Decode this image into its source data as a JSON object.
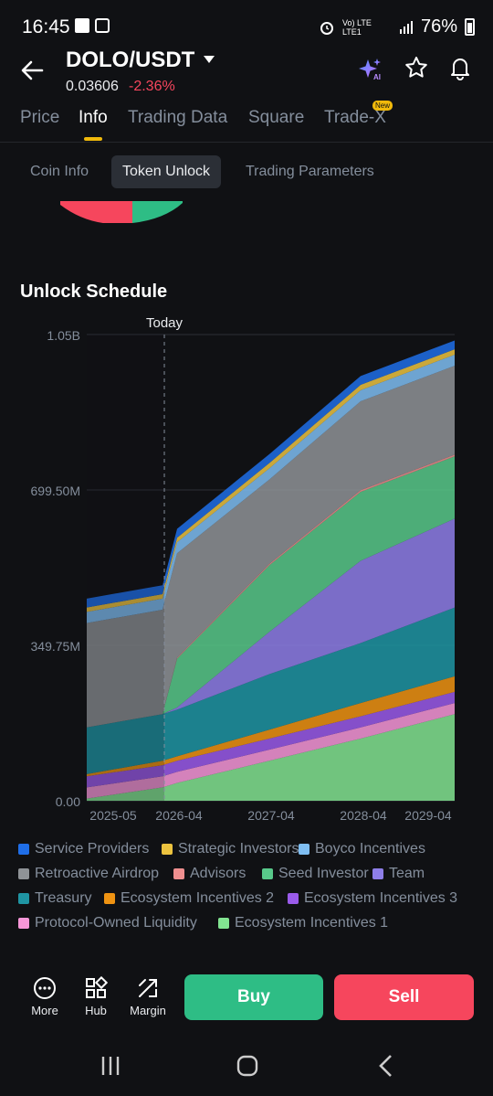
{
  "status_bar": {
    "time": "16:45",
    "network_label": "Vo) LTE LTE1",
    "battery": "76%"
  },
  "header": {
    "pair": "DOLO/USDT",
    "last_price": "0.03606",
    "change": "-2.36%",
    "icons": [
      "back-arrow-icon",
      "chevron-down-icon",
      "ai-sparkle-icon",
      "star-icon",
      "bell-icon"
    ]
  },
  "tabs": [
    {
      "label": "Price"
    },
    {
      "label": "Info"
    },
    {
      "label": "Trading Data"
    },
    {
      "label": "Square"
    },
    {
      "label": "Trade-X"
    }
  ],
  "tab_badge": "New",
  "subtabs": [
    {
      "label": "Coin Info"
    },
    {
      "label": "Token Unlock"
    },
    {
      "label": "Trading Parameters"
    }
  ],
  "section_title": "Unlock Schedule",
  "chart_data": {
    "type": "area",
    "stacked": true,
    "marker_label": "Today",
    "y_ticks": [
      "0.00",
      "349.75M",
      "699.50M",
      "1.05B"
    ],
    "x_ticks": [
      "2025-05",
      "2026-04",
      "2027-04",
      "2028-04",
      "2029-04"
    ],
    "ylim": [
      0,
      1049250000
    ],
    "y_unit": "tokens",
    "x": [
      "2025-05",
      "2026-03",
      "2026-04",
      "2027-04",
      "2028-04",
      "2029-04"
    ],
    "series": [
      {
        "name": "Ecosystem Incentives 1",
        "color": "#82e491",
        "values": [
          5000000,
          30000000,
          40000000,
          90000000,
          140000000,
          195000000
        ]
      },
      {
        "name": "Protocol-Owned Liquidity",
        "color": "#f797d8",
        "values": [
          25000000,
          25000000,
          25000000,
          25000000,
          25000000,
          25000000
        ]
      },
      {
        "name": "Ecosystem Incentives 3",
        "color": "#9a5bea",
        "values": [
          25000000,
          25000000,
          25000000,
          25000000,
          25000000,
          25000000
        ]
      },
      {
        "name": "Ecosystem Incentives 2",
        "color": "#ef9312",
        "values": [
          5000000,
          10000000,
          10000000,
          20000000,
          30000000,
          35000000
        ]
      },
      {
        "name": "Treasury",
        "color": "#1f95a3",
        "values": [
          105000000,
          105000000,
          105000000,
          125000000,
          135000000,
          155000000
        ]
      },
      {
        "name": "Team",
        "color": "#8e7ee8",
        "values": [
          0,
          0,
          5000000,
          95000000,
          185000000,
          200000000
        ]
      },
      {
        "name": "Seed Investor",
        "color": "#58c98a",
        "values": [
          0,
          0,
          110000000,
          150000000,
          155000000,
          140000000
        ]
      },
      {
        "name": "Advisors",
        "color": "#ef8f8f",
        "values": [
          0,
          0,
          2000000,
          3000000,
          4000000,
          4000000
        ]
      },
      {
        "name": "Retroactive Airdrop",
        "color": "#8f9397",
        "values": [
          235000000,
          235000000,
          235000000,
          190000000,
          200000000,
          200000000
        ]
      },
      {
        "name": "Boyco Incentives",
        "color": "#7fbef2",
        "values": [
          25000000,
          25000000,
          25000000,
          25000000,
          25000000,
          25000000
        ]
      },
      {
        "name": "Strategic Investors",
        "color": "#ecc33f",
        "values": [
          10000000,
          10000000,
          10000000,
          12000000,
          12000000,
          12000000
        ]
      },
      {
        "name": "Service Providers",
        "color": "#1f6ee8",
        "values": [
          20000000,
          20000000,
          20000000,
          20000000,
          20000000,
          20000000
        ]
      }
    ]
  },
  "legend": [
    {
      "label": "Service Providers",
      "color": "#1f6ee8"
    },
    {
      "label": "Strategic Investors",
      "color": "#ecc33f"
    },
    {
      "label": "Boyco Incentives",
      "color": "#7fbef2"
    },
    {
      "label": "Retroactive Airdrop",
      "color": "#8f9397"
    },
    {
      "label": "Advisors",
      "color": "#ef8f8f"
    },
    {
      "label": "Seed Investor",
      "color": "#58c98a"
    },
    {
      "label": "Team",
      "color": "#8e7ee8"
    },
    {
      "label": "Treasury",
      "color": "#1f95a3"
    },
    {
      "label": "Ecosystem Incentives 2",
      "color": "#ef9312"
    },
    {
      "label": "Ecosystem Incentives 3",
      "color": "#9a5bea"
    },
    {
      "label": "Protocol-Owned Liquidity",
      "color": "#f797d8"
    },
    {
      "label": "Ecosystem Incentives 1",
      "color": "#82e491"
    }
  ],
  "bottom_bar": {
    "tools": [
      {
        "label": "More",
        "icon": "more-dots-icon"
      },
      {
        "label": "Hub",
        "icon": "hub-grid-icon"
      },
      {
        "label": "Margin",
        "icon": "margin-arrows-icon"
      }
    ],
    "buy_label": "Buy",
    "sell_label": "Sell",
    "buy_color": "#2ebd85",
    "sell_color": "#f6465d"
  },
  "nav_bar": {
    "icons": [
      "recents-icon",
      "home-icon",
      "back-icon"
    ]
  }
}
